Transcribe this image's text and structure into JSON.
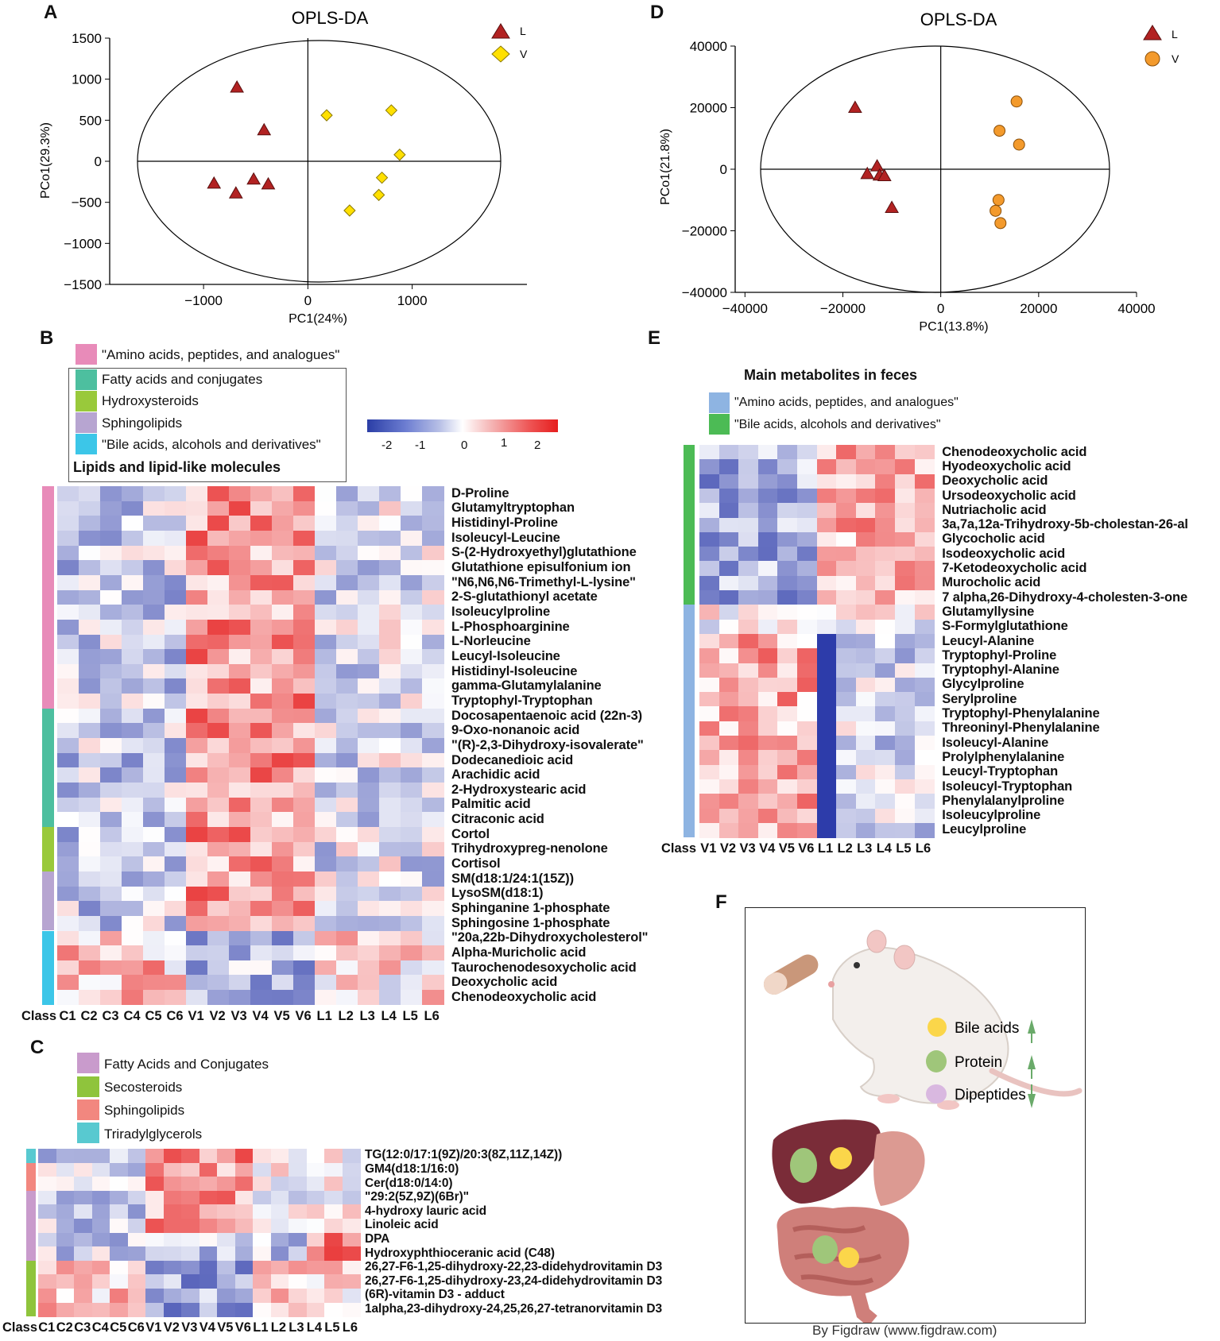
{
  "colors": {
    "L_triangle": "#b22222",
    "V_diamond": "#ffe000",
    "V_circle": "#f39a2c",
    "amino_pink": "#e88bb9",
    "fatty_teal": "#4dbf9f",
    "hydroxy_green": "#99c93b",
    "sphingo_purple": "#b7a5d1",
    "bile_cyan": "#3cc6e8",
    "E_amino_blue": "#8eb4e2",
    "E_bile_green": "#4cbb55",
    "C_fatty": "#c99bcc",
    "C_seco": "#8fc43c",
    "C_sphingo": "#f2877f",
    "C_triacyl": "#58c9d0"
  },
  "panelA": {
    "label": "A",
    "title": "OPLS-DA",
    "xlabel": "PC1(24%)",
    "ylabel": "PCo1(29.3%)",
    "legend": [
      {
        "name": "L",
        "shape": "triangle"
      },
      {
        "name": "V",
        "shape": "diamond"
      }
    ],
    "xticks": [
      "−1000",
      "0",
      "1000"
    ],
    "yticks": [
      "1500",
      "1000",
      "500",
      "0",
      "−500",
      "−1000",
      "−1500"
    ]
  },
  "panelD": {
    "label": "D",
    "title": "OPLS-DA",
    "xlabel": "PC1(13.8%)",
    "ylabel": "PCo1(21.8%)",
    "legend": [
      {
        "name": "L",
        "shape": "triangle"
      },
      {
        "name": "V",
        "shape": "circle"
      }
    ],
    "xticks": [
      "−40000",
      "−20000",
      "0",
      "20000",
      "40000"
    ],
    "yticks": [
      "40000",
      "20000",
      "0",
      "−20000",
      "−40000"
    ]
  },
  "chart_data": [
    {
      "type": "scatter",
      "title": "OPLS-DA",
      "xlabel": "PC1(24%)",
      "ylabel": "PCo1(29.3%)",
      "xlim": [
        -1900,
        2100
      ],
      "ylim": [
        -1500,
        1500
      ],
      "series": [
        {
          "name": "L",
          "points": [
            [
              -680,
              900
            ],
            [
              -420,
              380
            ],
            [
              -900,
              -270
            ],
            [
              -520,
              -220
            ],
            [
              -380,
              -280
            ],
            [
              -690,
              -390
            ]
          ]
        },
        {
          "name": "V",
          "points": [
            [
              180,
              560
            ],
            [
              800,
              620
            ],
            [
              880,
              80
            ],
            [
              710,
              -200
            ],
            [
              680,
              -410
            ],
            [
              400,
              -600
            ]
          ]
        }
      ]
    },
    {
      "type": "scatter",
      "title": "OPLS-DA",
      "xlabel": "PC1(13.8%)",
      "ylabel": "PCo1(21.8%)",
      "xlim": [
        -42000,
        40000
      ],
      "ylim": [
        -40000,
        40000
      ],
      "series": [
        {
          "name": "L",
          "points": [
            [
              -17500,
              20000
            ],
            [
              -13000,
              1000
            ],
            [
              -15000,
              -1500
            ],
            [
              -12500,
              -2000
            ],
            [
              -11500,
              -2200
            ],
            [
              -10000,
              -12500
            ]
          ]
        },
        {
          "name": "V",
          "points": [
            [
              15500,
              22000
            ],
            [
              12000,
              12500
            ],
            [
              16000,
              8000
            ],
            [
              11800,
              -10000
            ],
            [
              11200,
              -13500
            ],
            [
              12200,
              -17500
            ]
          ]
        }
      ]
    }
  ],
  "panelB": {
    "label": "B",
    "categories": [
      {
        "name": "\"Amino acids, peptides, and analogues\"",
        "color": "#e88bb9"
      },
      {
        "name": "Fatty acids and conjugates",
        "color": "#4dbf9f"
      },
      {
        "name": "Hydroxysteroids",
        "color": "#99c93b"
      },
      {
        "name": "Sphingolipids",
        "color": "#b7a5d1"
      },
      {
        "name": "\"Bile acids, alcohols and derivatives\"",
        "color": "#3cc6e8"
      }
    ],
    "box_label": "Lipids and lipid-like molecules",
    "colorbar_ticks": [
      "-2",
      "-1",
      "0",
      "1",
      "2"
    ],
    "columns": [
      "C1",
      "C2",
      "C3",
      "C4",
      "C5",
      "C6",
      "V1",
      "V2",
      "V3",
      "V4",
      "V5",
      "V6",
      "L1",
      "L2",
      "L3",
      "L4",
      "L5",
      "L6"
    ],
    "class_label": "Class",
    "rows": [
      "D-Proline",
      "Glutamyltryptophan",
      "Histidinyl-Proline",
      "Isoleucyl-Leucine",
      "S-(2-Hydroxyethyl)glutathione",
      "Glutathione episulfonium ion",
      "\"N6,N6,N6-Trimethyl-L-lysine\"",
      "2-S-glutathionyl acetate",
      "Isoleucylproline",
      "L-Phosphoarginine",
      "L-Norleucine",
      "Leucyl-Isoleucine",
      "Histidinyl-Isoleucine",
      "gamma-Glutamylalanine",
      "Tryptophyl-Tryptophan",
      "Docosapentaenoic acid (22n-3)",
      "9-Oxo-nonanoic acid",
      "\"(R)-2,3-Dihydroxy-isovalerate\"",
      "Dodecanedioic acid",
      "Arachidic acid",
      "2-Hydroxystearic acid",
      "Palmitic acid",
      "Citraconic acid",
      "Cortol",
      "Trihydroxypreg-nenolone",
      "Cortisol",
      "SM(d18:1/24:1(15Z))",
      "LysoSM(d18:1)",
      "Sphinganine 1-phosphate",
      "Sphingosine 1-phosphate",
      "\"20a,22b-Dihydroxycholesterol\"",
      "Alpha-Muricholic acid",
      "Taurochenodesoxycholic acid",
      "Deoxycholic acid",
      "Chenodeoxycholic acid"
    ],
    "row_groups": [
      15,
      8,
      3,
      4,
      5
    ]
  },
  "panelC": {
    "label": "C",
    "categories": [
      {
        "name": "Fatty Acids and Conjugates",
        "color": "#c99bcc"
      },
      {
        "name": "Secosteroids",
        "color": "#8fc43c"
      },
      {
        "name": "Sphingolipids",
        "color": "#f2877f"
      },
      {
        "name": "Triradylglycerols",
        "color": "#58c9d0"
      }
    ],
    "columns": [
      "C1",
      "C2",
      "C3",
      "C4",
      "C5",
      "C6",
      "V1",
      "V2",
      "V3",
      "V4",
      "V5",
      "V6",
      "L1",
      "L2",
      "L3",
      "L4",
      "L5",
      "L6"
    ],
    "class_label": "Class",
    "rows": [
      "TG(12:0/17:1(9Z)/20:3(8Z,11Z,14Z))",
      "GM4(d18:1/16:0)",
      "Cer(d18:0/14:0)",
      "\"29:2(5Z,9Z)(6Br)\"",
      "4-hydroxy lauric acid",
      "Linoleic acid",
      "DPA",
      "Hydroxyphthioceranic acid (C48)",
      "26,27-F6-1,25-dihydroxy-22,23-didehydrovitamin D3",
      "26,27-F6-1,25-dihydroxy-23,24-didehydrovitamin D3",
      "(6R)-vitamin D3 - adduct",
      "1alpha,23-dihydroxy-24,25,26,27-tetranorvitamin D3"
    ]
  },
  "panelE": {
    "label": "E",
    "heading": "Main metabolites in feces",
    "categories": [
      {
        "name": "\"Amino acids, peptides, and analogues\"",
        "color": "#8eb4e2"
      },
      {
        "name": "\"Bile acids, alcohols and derivatives\"",
        "color": "#4cbb55"
      }
    ],
    "columns": [
      "V1",
      "V2",
      "V3",
      "V4",
      "V5",
      "V6",
      "L1",
      "L2",
      "L3",
      "L4",
      "L5",
      "L6"
    ],
    "class_label": "Class",
    "rows": [
      "Chenodeoxycholic acid",
      "Hyodeoxycholic acid",
      "Deoxycholic acid",
      "Ursodeoxycholic acid",
      "Nutriacholic acid",
      "3a,7a,12a-Trihydroxy-5b-cholestan-26-al",
      "Glycocholic acid",
      "Isodeoxycholic acid",
      "7-Ketodeoxycholic acid",
      "Murocholic acid",
      "7 alpha,26-Dihydroxy-4-cholesten-3-one",
      "Glutamyllysine",
      "S-Formylglutathione",
      "Leucyl-Alanine",
      "Tryptophyl-Proline",
      "Tryptophyl-Alanine",
      "Glycylproline",
      "Serylproline",
      "Tryptophyl-Phenylalanine",
      "Threoninyl-Phenylalanine",
      "Isoleucyl-Alanine",
      "Prolylphenylalanine",
      "Leucyl-Tryptophan",
      "Isoleucyl-Tryptophan",
      "Phenylalanylproline",
      "Isoleucylproline",
      "Leucylproline"
    ]
  },
  "panelF": {
    "label": "F",
    "legend": [
      {
        "name": "Bile acids",
        "arrow": "up"
      },
      {
        "name": "Protein",
        "arrow": "up"
      },
      {
        "name": "Dipeptides",
        "arrow": "down"
      }
    ],
    "credit": "By Figdraw (www.figdraw.com)"
  }
}
